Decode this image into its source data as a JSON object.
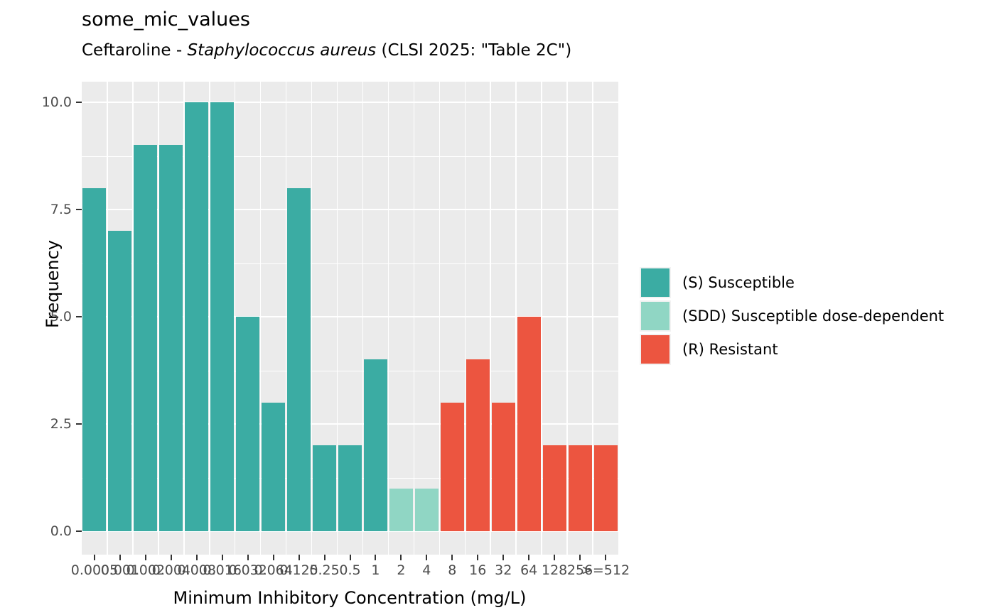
{
  "chart_data": {
    "type": "bar",
    "title": "some_mic_values",
    "subtitle": {
      "prefix": "Ceftaroline - ",
      "species": "Staphylococcus aureus",
      "suffix": " (CLSI 2025: \"Table 2C\")"
    },
    "xlabel": "Minimum Inhibitory Concentration (mg/L)",
    "ylabel": "Frequency",
    "ylim": [
      0,
      10
    ],
    "ytick_labels": [
      "0.0",
      "2.5",
      "5.0",
      "7.5",
      "10.0"
    ],
    "yticks": [
      0,
      2.5,
      5,
      7.5,
      10
    ],
    "minor_yticks": [
      1.25,
      3.75,
      6.25,
      8.75
    ],
    "grid": true,
    "legend_position": "right",
    "categories": [
      "0.0005",
      "0.001",
      "0.002",
      "0.004",
      "0.008",
      "0.016",
      "0.032",
      "0.064",
      "0.125",
      "0.25",
      "0.5",
      "1",
      "2",
      "4",
      "8",
      "16",
      "32",
      "64",
      "128",
      "256",
      ">=512"
    ],
    "values": [
      8,
      7,
      9,
      9,
      10,
      10,
      5,
      3,
      8,
      2,
      2,
      4,
      1,
      1,
      3,
      4,
      3,
      5,
      2,
      2,
      2
    ],
    "interpretations": [
      "S",
      "S",
      "S",
      "S",
      "S",
      "S",
      "S",
      "S",
      "S",
      "S",
      "S",
      "S",
      "SDD",
      "SDD",
      "R",
      "R",
      "R",
      "R",
      "R",
      "R",
      "R"
    ],
    "colors": {
      "S": "#3BACA3",
      "SDD": "#90D6C4",
      "R": "#EC5540"
    },
    "legend": [
      {
        "key": "S",
        "label": "(S) Susceptible",
        "color": "#3BACA3"
      },
      {
        "key": "SDD",
        "label": "(SDD) Susceptible dose-dependent",
        "color": "#90D6C4"
      },
      {
        "key": "R",
        "label": "(R) Resistant",
        "color": "#EC5540"
      }
    ]
  },
  "theme": {
    "panel_bg": "#EBEBEB",
    "grid_color": "#FFFFFF",
    "tick_color": "#333333",
    "tick_label_color": "#4D4D4D",
    "background": "#FFFFFF"
  }
}
